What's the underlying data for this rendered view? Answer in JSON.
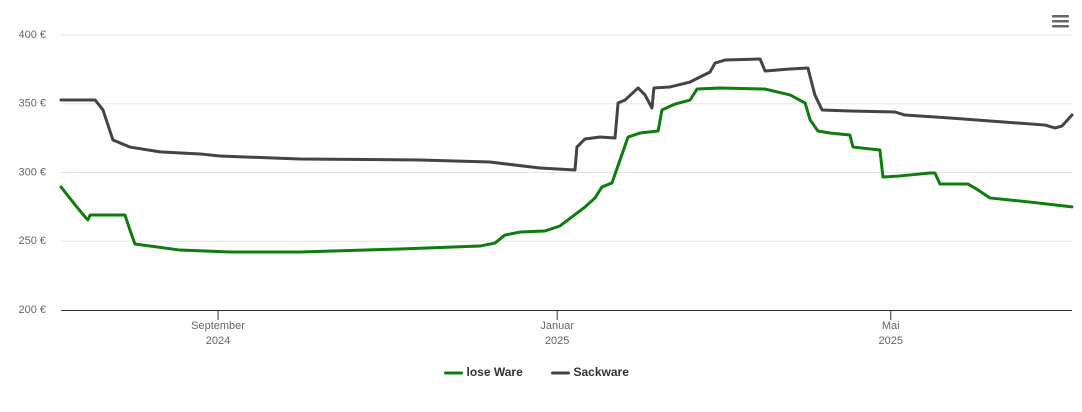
{
  "chart_data": {
    "type": "line",
    "xlim": [
      -56.5,
      307.2
    ],
    "xticks": [
      {
        "value": 0,
        "label": "September\n2024"
      },
      {
        "value": 122,
        "label": "Januar\n2025"
      },
      {
        "value": 242,
        "label": "Mai\n2025"
      }
    ],
    "ylim": [
      200,
      400
    ],
    "yticks": [
      {
        "value": 200,
        "label": "200 €"
      },
      {
        "value": 250,
        "label": "250 €"
      },
      {
        "value": 300,
        "label": "300 €"
      },
      {
        "value": 350,
        "label": "350 €"
      },
      {
        "value": 400,
        "label": "400 €"
      }
    ],
    "grid": true,
    "legend": "bottom",
    "series": [
      {
        "name": "lose Ware",
        "color": "#0d7d0d",
        "x": [
          -56.5,
          -51.4,
          -47.8,
          -46.8,
          -46,
          -33.5,
          -31.7,
          -29.9,
          -13.7,
          4.3,
          29.5,
          65.5,
          94.2,
          99.6,
          103.2,
          108.6,
          117.6,
          123,
          132,
          135.6,
          138.1,
          141.7,
          144.6,
          147.5,
          151.8,
          158.3,
          159.7,
          164.4,
          169.8,
          172.3,
          180.6,
          196.8,
          205.8,
          211.2,
          213,
          215.8,
          220.1,
          227.3,
          228.4,
          238.1,
          239.2,
          245.3,
          256.1,
          257.9,
          259.7,
          269.8,
          273.4,
          277.7,
          292.1,
          307.2
        ],
        "values": [
          289.5,
          276.4,
          267.6,
          265.5,
          269.1,
          269.1,
          258.2,
          248,
          243.6,
          242.2,
          242.2,
          244.4,
          246.5,
          248.7,
          254.5,
          256.7,
          257.5,
          261.1,
          274.9,
          281.5,
          289.5,
          292.4,
          309.1,
          325.8,
          328.7,
          330.2,
          345.5,
          349.8,
          352.7,
          360.7,
          361.5,
          360.7,
          356.4,
          350.5,
          338.2,
          330.2,
          328.7,
          327.3,
          318.5,
          316.4,
          296.7,
          297.5,
          299.6,
          299.6,
          291.6,
          291.6,
          287.3,
          281.5,
          278.5,
          275
        ]
      },
      {
        "name": "Sackware",
        "color": "#434348",
        "x": [
          -56.5,
          -44.2,
          -41.4,
          -37.8,
          -31.7,
          -20.9,
          -6.5,
          0.7,
          29.5,
          72.7,
          97.8,
          115.8,
          128.4,
          129.1,
          132,
          137.4,
          142.8,
          143.9,
          146.4,
          151.1,
          153.6,
          156.1,
          156.8,
          162.6,
          169.8,
          177,
          178.8,
          182.4,
          195,
          196.8,
          205.8,
          212.2,
          214.7,
          217.3,
          227.3,
          243.5,
          247.1,
          263.3,
          297.5,
          301.1,
          303.6,
          307.2
        ],
        "values": [
          352.7,
          352.7,
          345.5,
          323.6,
          318.5,
          315,
          313.5,
          312,
          309.8,
          309.1,
          307.6,
          303.3,
          301.8,
          318.5,
          324.4,
          325.8,
          325.1,
          350.5,
          352.7,
          361.5,
          356.4,
          346.9,
          361.5,
          362.2,
          365.8,
          373.1,
          379.6,
          381.8,
          382.5,
          373.8,
          375.3,
          376,
          356.4,
          345.5,
          344.7,
          344,
          341.8,
          339.6,
          334.5,
          332.4,
          333.8,
          341.8
        ]
      }
    ]
  }
}
